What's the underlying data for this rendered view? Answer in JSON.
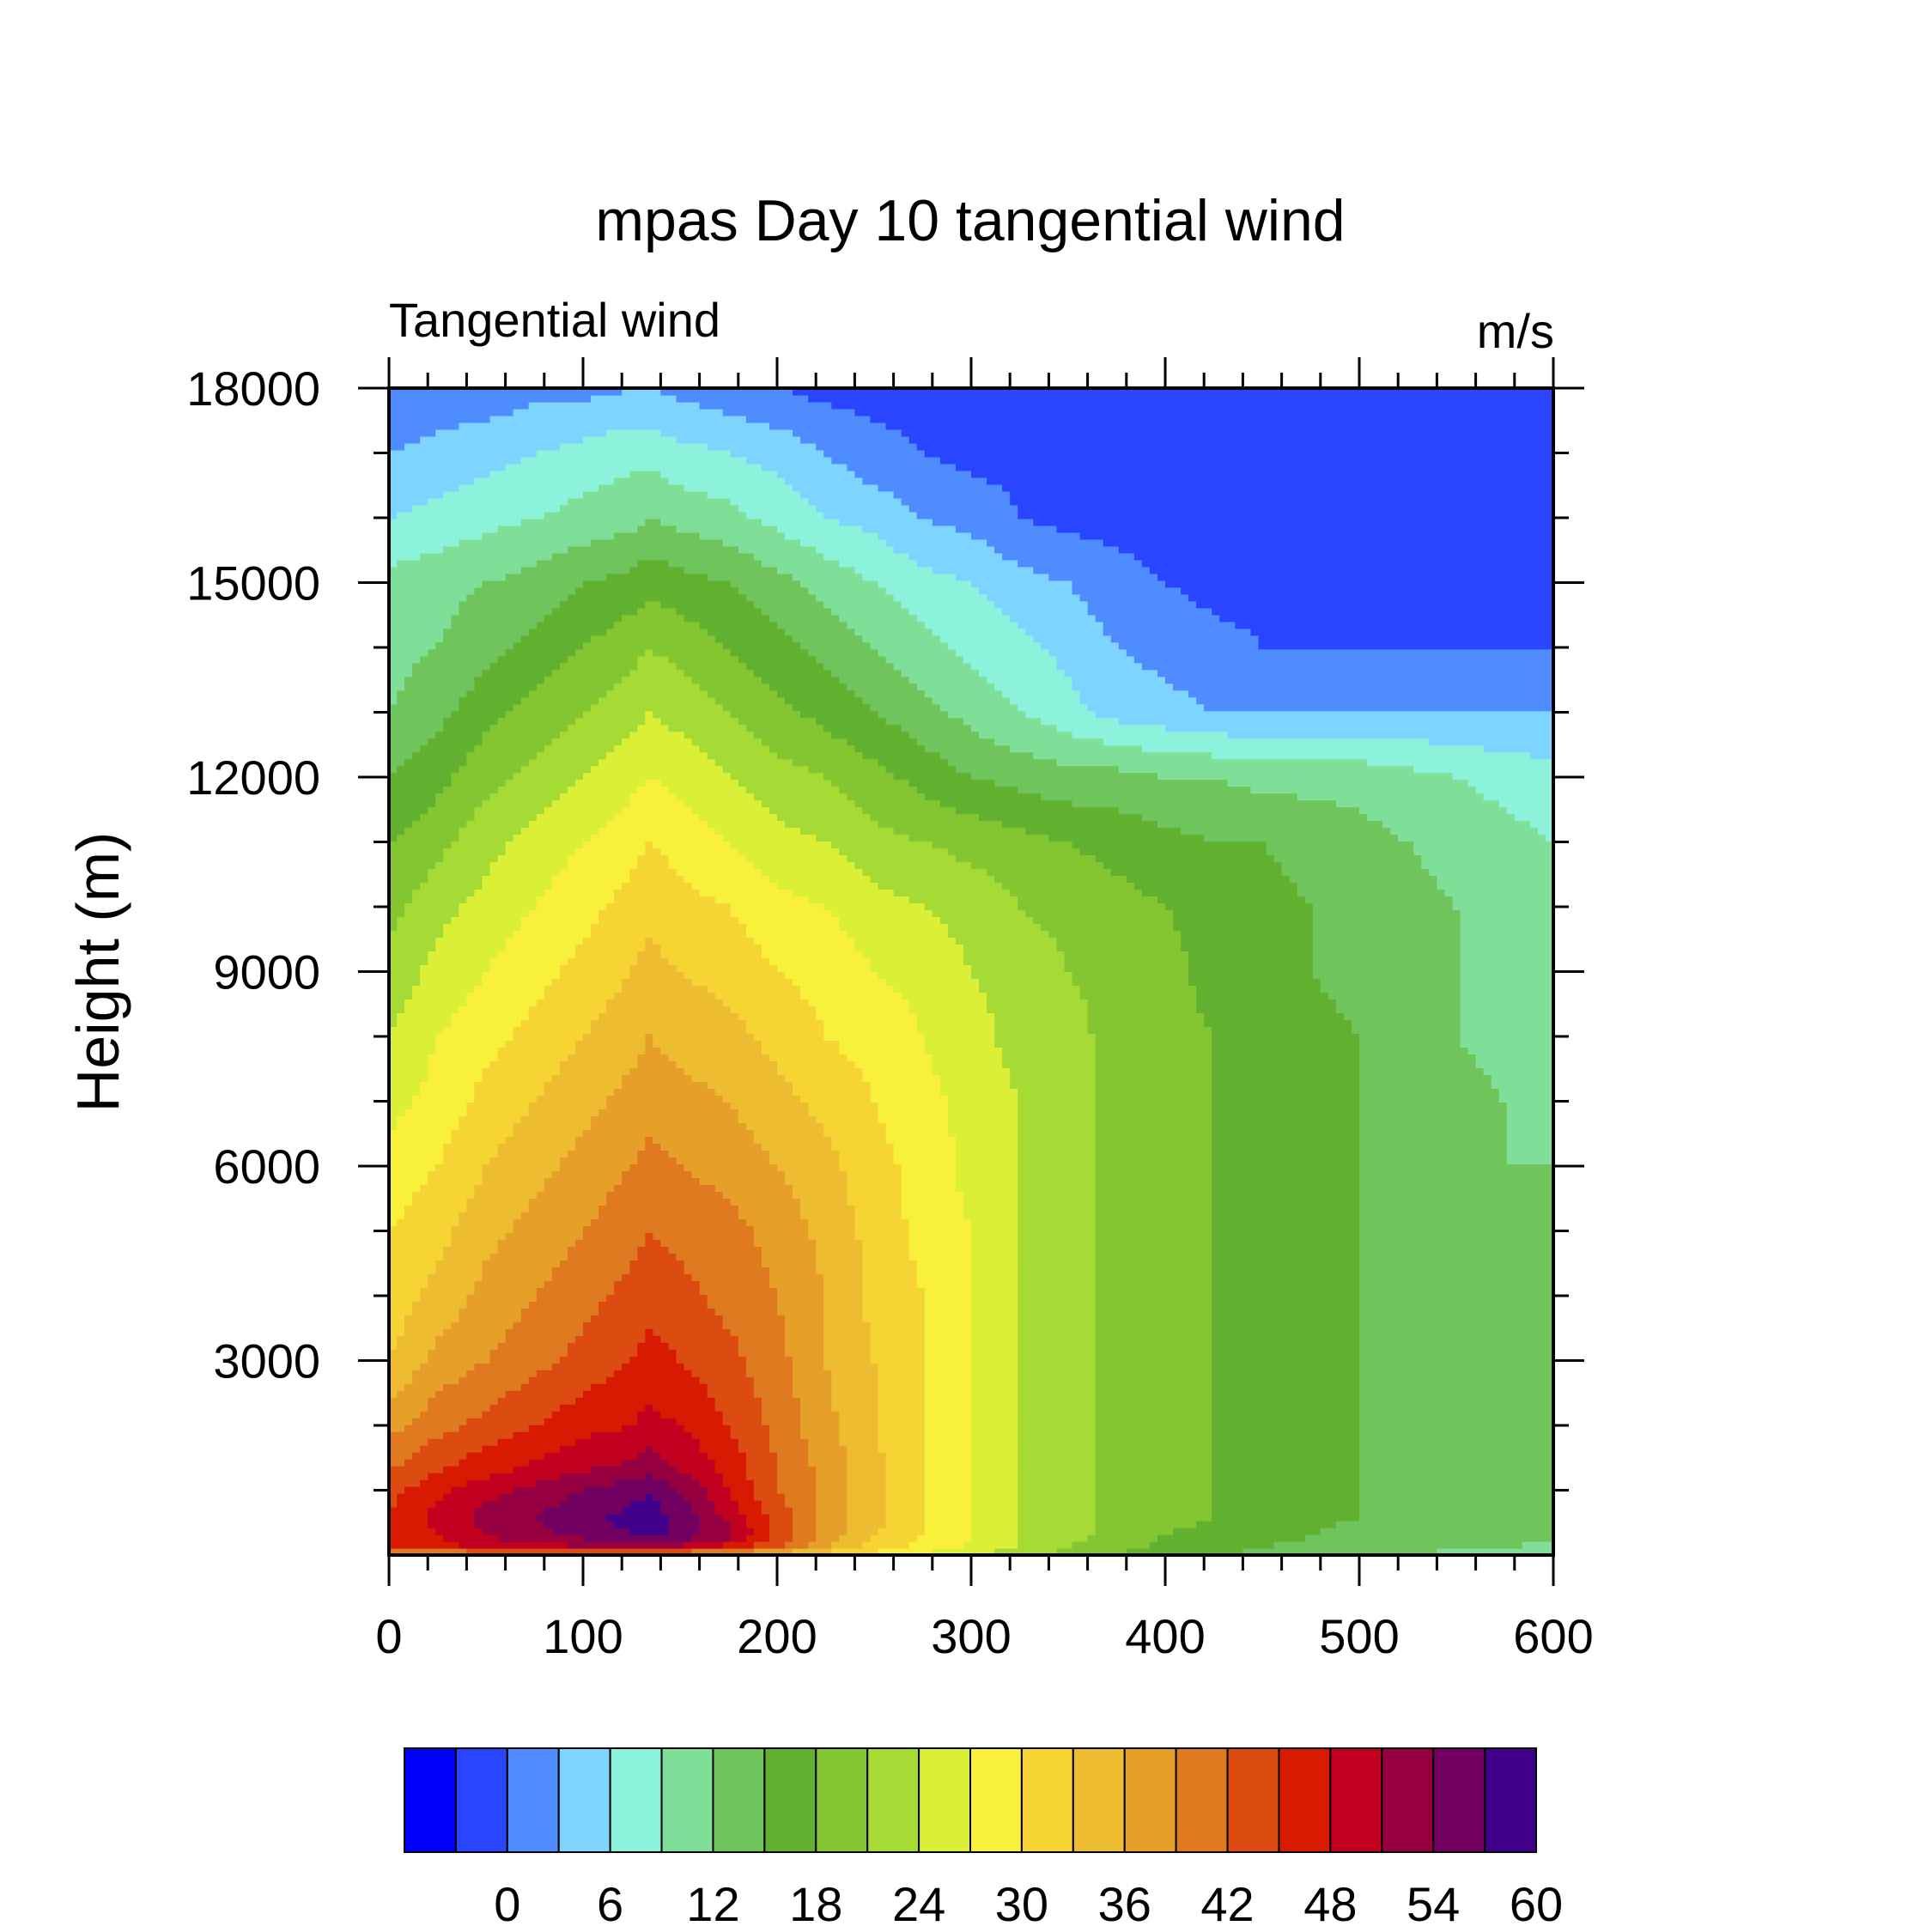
{
  "chart_data": {
    "type": "heatmap",
    "subtype": "filled-contour",
    "title": "mpas Day 10 tangential wind",
    "left_string": "Tangential wind",
    "right_string": "m/s",
    "xlabel": "",
    "ylabel": "Height (m)",
    "xlim": [
      0,
      600
    ],
    "ylim": [
      0,
      18000
    ],
    "x_ticks": [
      0,
      100,
      200,
      300,
      400,
      500,
      600
    ],
    "y_ticks": [
      3000,
      6000,
      9000,
      12000,
      15000,
      18000
    ],
    "x_tick_labels": [
      "0",
      "100",
      "200",
      "300",
      "400",
      "500",
      "600"
    ],
    "y_tick_labels": [
      "3000",
      "6000",
      "9000",
      "12000",
      "15000",
      "18000"
    ],
    "x_minor_step": 20,
    "y_minor_step": 1000,
    "contour_interval": 3,
    "colorbar": {
      "levels": [
        -3,
        0,
        3,
        6,
        9,
        12,
        15,
        18,
        21,
        24,
        27,
        30,
        33,
        36,
        39,
        42,
        45,
        48,
        51,
        54,
        57,
        60
      ],
      "labels": [
        "0",
        "6",
        "12",
        "18",
        "24",
        "30",
        "36",
        "42",
        "48",
        "54",
        "60"
      ],
      "label_values": [
        0,
        6,
        12,
        18,
        24,
        30,
        36,
        42,
        48,
        54,
        60
      ],
      "colors": [
        "#0000ff",
        "#2a45ff",
        "#4f8cff",
        "#7dd5ff",
        "#8cf2dc",
        "#7fdf99",
        "#6fc55c",
        "#62b02f",
        "#84c632",
        "#a6da35",
        "#dcef37",
        "#f9f03b",
        "#f5d433",
        "#eebc30",
        "#e6a02a",
        "#e07a20",
        "#dc4b10",
        "#d81a02",
        "#c2001f",
        "#960040",
        "#720060",
        "#42008a"
      ]
    },
    "field": {
      "description": "Tangential wind (m/s) read from contours",
      "x_km": [
        0,
        25,
        50,
        75,
        100,
        125,
        134,
        150,
        175,
        200,
        225,
        250,
        275,
        300,
        325,
        350,
        375,
        400,
        425,
        450,
        475,
        500,
        525,
        550,
        575,
        600
      ],
      "z_m": [
        0,
        100,
        300,
        600,
        1000,
        1300,
        2000,
        3000,
        4000,
        5000,
        6000,
        7000,
        8000,
        9000,
        10000,
        11000,
        12000,
        13000,
        14000,
        15000,
        16000,
        17000,
        18000
      ],
      "values": [
        [
          34,
          35,
          36,
          36,
          36,
          36,
          36,
          35,
          34,
          32,
          30,
          28,
          26,
          24,
          22,
          20,
          18,
          16,
          15,
          14,
          13,
          12,
          12,
          11,
          11,
          10
        ],
        [
          46,
          47,
          48,
          49,
          50,
          50,
          50,
          49,
          46,
          42,
          36,
          32,
          29,
          26,
          24,
          21,
          19,
          17,
          16,
          15,
          14,
          13,
          13,
          12,
          12,
          11
        ],
        [
          46,
          48,
          51,
          53,
          55,
          57,
          58,
          56,
          52,
          44,
          38,
          33,
          30,
          27,
          24,
          22,
          20,
          18,
          17,
          16,
          15,
          14,
          13,
          13,
          13,
          13
        ],
        [
          45,
          49,
          52,
          54,
          56,
          58,
          58.5,
          56,
          50,
          44,
          38,
          34,
          30,
          27,
          24,
          22,
          20,
          19,
          18,
          17,
          16,
          15,
          14,
          14,
          14,
          14
        ],
        [
          44,
          47,
          50,
          52,
          54,
          56,
          57,
          54,
          48,
          42,
          38,
          34,
          30,
          27,
          24,
          22,
          20,
          19,
          18,
          17,
          16,
          15,
          14,
          14,
          14,
          14
        ],
        [
          42,
          45,
          47,
          49,
          51,
          52,
          53,
          51,
          47,
          42,
          38,
          34,
          30,
          27,
          24,
          22,
          20,
          19,
          18,
          17,
          16,
          15,
          14,
          14,
          14,
          14
        ],
        [
          38,
          41,
          43,
          45,
          47,
          48,
          49,
          48,
          45,
          41,
          37,
          33,
          30,
          27,
          24,
          22,
          20,
          19,
          18,
          17,
          16,
          15,
          14,
          14,
          14,
          14
        ],
        [
          33,
          37,
          39,
          41,
          43,
          45,
          46,
          45,
          43,
          40,
          36,
          33,
          30,
          27,
          24,
          22,
          20,
          19,
          18,
          17,
          16,
          15,
          14,
          14,
          14,
          13
        ],
        [
          31,
          34,
          37,
          39,
          41,
          43,
          44,
          43,
          41,
          39,
          36,
          32,
          30,
          27,
          24,
          22,
          20,
          19,
          18,
          17,
          16,
          15,
          14,
          14,
          13,
          13
        ],
        [
          30,
          32,
          35,
          37,
          39,
          41,
          42,
          41,
          40,
          38,
          35,
          32,
          29,
          27,
          24,
          22,
          20,
          19,
          18,
          17,
          16,
          15,
          14,
          13,
          13,
          12
        ],
        [
          28,
          30,
          33,
          35,
          37,
          39,
          40,
          39,
          38,
          36,
          34,
          31,
          29,
          26,
          24,
          22,
          20,
          19,
          18,
          17,
          16,
          15,
          14,
          13,
          12,
          12
        ],
        [
          26,
          28,
          31,
          33,
          35,
          37,
          38,
          37,
          36,
          34,
          32,
          30,
          28,
          26,
          24,
          22,
          20,
          19,
          18,
          17,
          16,
          15,
          14,
          13,
          12,
          11
        ],
        [
          24,
          27,
          29,
          31,
          33,
          35,
          36,
          35,
          34,
          32,
          30,
          29,
          27,
          25,
          23,
          22,
          20,
          19,
          18,
          17,
          16,
          15,
          13,
          12,
          11,
          11
        ],
        [
          22,
          25,
          27,
          29,
          31,
          33,
          34,
          33,
          32,
          30,
          29,
          27,
          26,
          24,
          23,
          21,
          20,
          19,
          17,
          16,
          15,
          14,
          13,
          12,
          11,
          11
        ],
        [
          20,
          23,
          25,
          27,
          29,
          31,
          32,
          31,
          30,
          28,
          27,
          25,
          24,
          23,
          21,
          20,
          19,
          18,
          17,
          16,
          15,
          14,
          13,
          12,
          11,
          10
        ],
        [
          18,
          20,
          23,
          25,
          27,
          29,
          30,
          29,
          27,
          25,
          24,
          22,
          21,
          20,
          19,
          18,
          17,
          16,
          15,
          15,
          14,
          13,
          12,
          11,
          10,
          9
        ],
        [
          15,
          17,
          20,
          22,
          24,
          26,
          27,
          26,
          24,
          22,
          21,
          19,
          17,
          15,
          14,
          13,
          13,
          12,
          12,
          11,
          11,
          11,
          10,
          9,
          8,
          7
        ],
        [
          12,
          14,
          17,
          19,
          21,
          23,
          24,
          23,
          21,
          19,
          17,
          15,
          13,
          11,
          9,
          7,
          5,
          4,
          3,
          3,
          3,
          3,
          3,
          3,
          3,
          3
        ],
        [
          11,
          12,
          14,
          16,
          18,
          20,
          21,
          20,
          18,
          16,
          14,
          12,
          10,
          8,
          7,
          5,
          3,
          2,
          1,
          0,
          0,
          0,
          0,
          0,
          0,
          0
        ],
        [
          10,
          11,
          12,
          13,
          15,
          16,
          17,
          16,
          15,
          13,
          11,
          9,
          7,
          6,
          4,
          3,
          1,
          0,
          -1,
          -1,
          -1,
          -1,
          -1,
          -1,
          -1,
          -1
        ],
        [
          6,
          7,
          8,
          9,
          10,
          11,
          12,
          11,
          10,
          8,
          6,
          5,
          3,
          2,
          0,
          -1,
          -1,
          -1,
          -1,
          -1,
          -1,
          -1,
          -1,
          -1,
          -1,
          -1
        ],
        [
          3,
          4,
          5,
          6,
          7,
          8,
          8,
          7,
          6,
          5,
          3,
          1,
          0,
          -1,
          -1,
          -1,
          -1,
          -1,
          -1,
          -1,
          -1,
          -1,
          -1,
          -1,
          -1,
          -1
        ],
        [
          0,
          1,
          1,
          2,
          2,
          3,
          3,
          2,
          1,
          0,
          -1,
          -1,
          -1,
          -1,
          -1,
          -1,
          -1,
          -1,
          -1,
          -1,
          -1,
          -1,
          -1,
          -1,
          -1,
          -1
        ]
      ]
    }
  }
}
